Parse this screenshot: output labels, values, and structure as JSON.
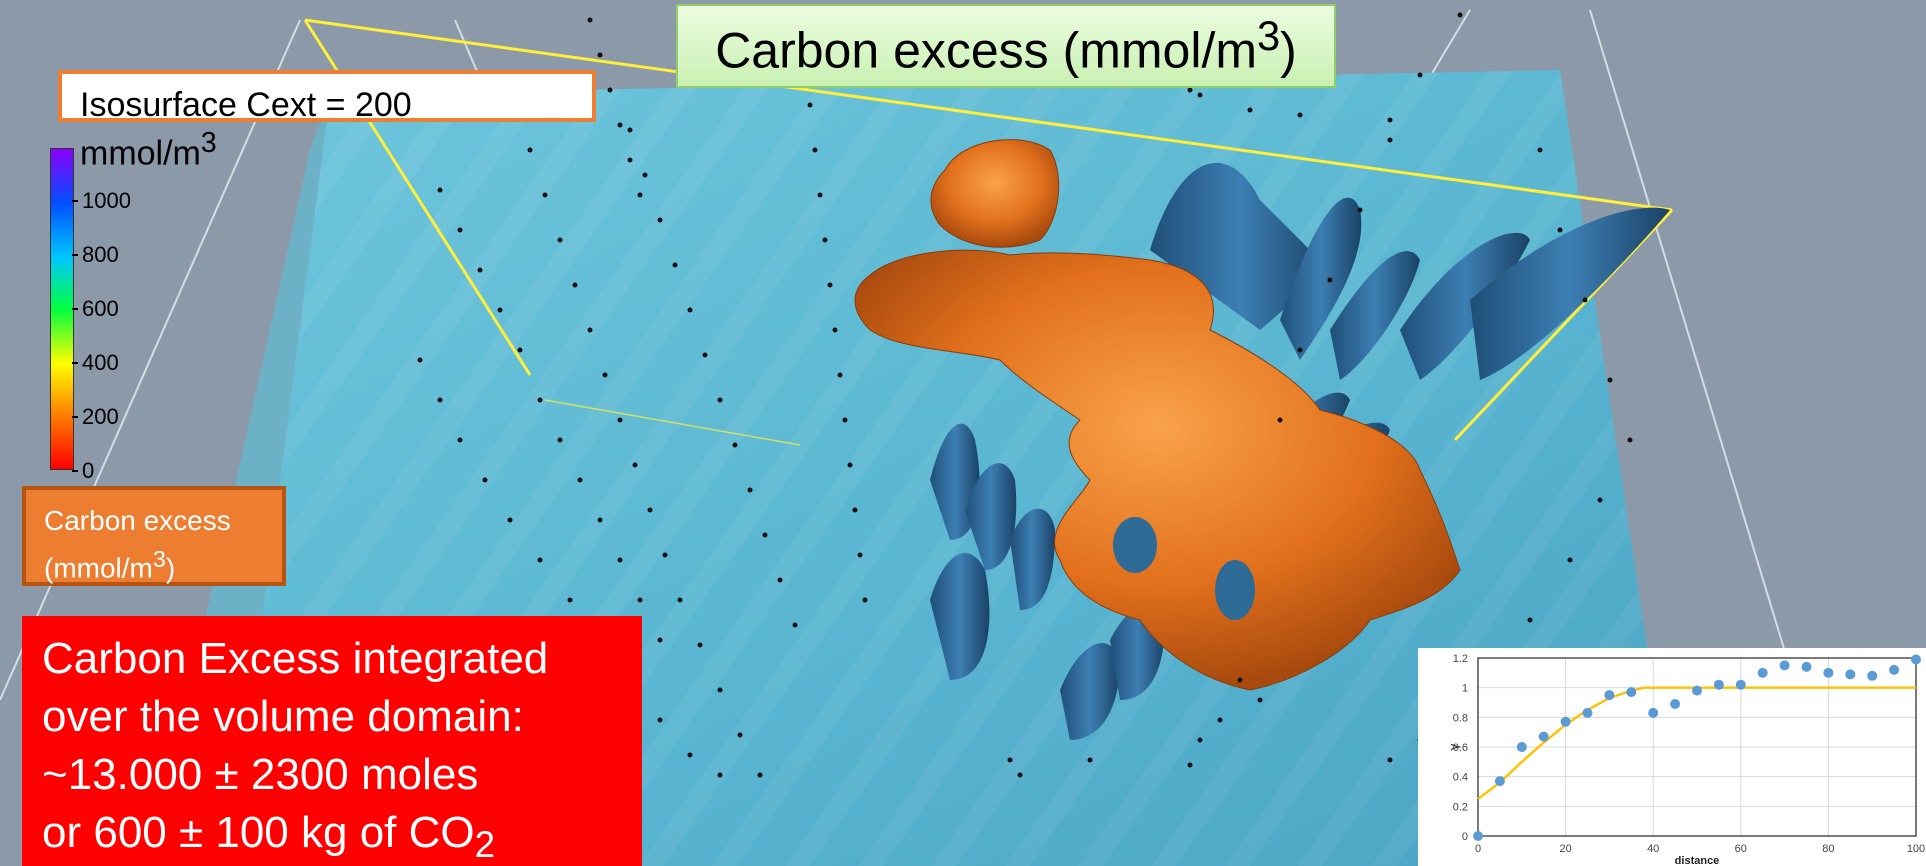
{
  "title": {
    "text": "Carbon excess (mmol/m",
    "sup": "3",
    "tail": ")"
  },
  "isosurface_label": {
    "line1": "Isosurface Cext = 200",
    "line2": "mmol/m",
    "sup": "3"
  },
  "colorbar": {
    "ticks": [
      "1000",
      "800",
      "600",
      "400",
      "200",
      "0"
    ],
    "colors": [
      "#ff0000",
      "#ff7f00",
      "#ffff00",
      "#00ff40",
      "#00c8ff",
      "#0050ff",
      "#8a00ff"
    ]
  },
  "legend": {
    "line1": "Carbon excess",
    "line2": "(mmol/m",
    "sup": "3",
    "tail": ")"
  },
  "summary": {
    "line1": "Carbon Excess integrated",
    "line2": "over the volume domain:",
    "line3": "~13.000 ± 2300 moles",
    "line4": "or 600 ± 100 kg of CO",
    "sub": "2"
  },
  "chart_data": {
    "type": "scatter",
    "xlabel": "distance",
    "ylabel": "γ",
    "xlim": [
      0,
      100
    ],
    "ylim": [
      0,
      1.2
    ],
    "xticks": [
      "0",
      "20",
      "40",
      "60",
      "80",
      "100"
    ],
    "yticks": [
      "0",
      "0.2",
      "0.4",
      "0.6",
      "0.8",
      "1",
      "1.2"
    ],
    "points": {
      "x": [
        0,
        5,
        10,
        15,
        20,
        25,
        30,
        35,
        40,
        45,
        50,
        55,
        60,
        65,
        70,
        75,
        80,
        85,
        90,
        95,
        100
      ],
      "y": [
        0.0,
        0.37,
        0.6,
        0.67,
        0.77,
        0.83,
        0.95,
        0.97,
        0.83,
        0.89,
        0.98,
        1.02,
        1.02,
        1.1,
        1.15,
        1.14,
        1.1,
        1.09,
        1.08,
        1.12,
        1.19
      ]
    },
    "model": {
      "x": [
        0,
        5,
        10,
        15,
        20,
        25,
        30,
        35,
        38,
        50,
        60,
        80,
        100
      ],
      "y": [
        0.25,
        0.36,
        0.5,
        0.63,
        0.75,
        0.85,
        0.93,
        0.98,
        1.0,
        1.0,
        1.0,
        1.0,
        1.0
      ]
    },
    "point_color": "#5b9bd5",
    "line_color": "#ffc000",
    "grid": true
  }
}
